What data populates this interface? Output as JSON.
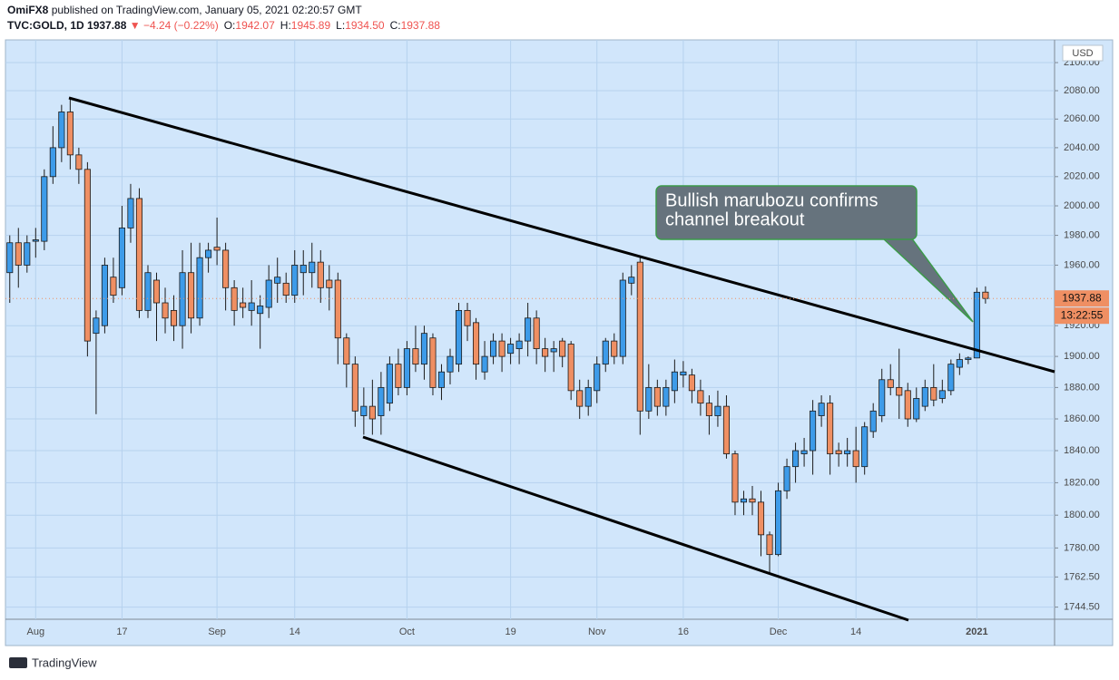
{
  "header": {
    "author": "OmiFX8",
    "published": "published on TradingView.com, January 05, 2021 02:20:57 GMT",
    "symbol": "TVC:GOLD, 1D",
    "last": "1937.88",
    "arrow": "▼",
    "change": "−4.24 (−0.22%)",
    "ohlc": [
      {
        "key": "O:",
        "value": "1942.07"
      },
      {
        "key": "H:",
        "value": "1945.89"
      },
      {
        "key": "L:",
        "value": "1934.50"
      },
      {
        "key": "C:",
        "value": "1937.88"
      }
    ]
  },
  "footer": {
    "brand": "TradingView"
  },
  "chart_data": {
    "type": "candlestick",
    "currency": "USD",
    "log_scale": true,
    "grid": true,
    "up_color": "#3d9be9",
    "down_color": "#ef8f63",
    "annotation": [
      "Bullish marubozu confirms",
      "channel breakout"
    ],
    "last_price": 1937.88,
    "countdown": "13:22:55",
    "ylim": [
      1737.3,
      2116.3
    ],
    "yticks": [
      {
        "value": 2100,
        "label": "2100.00"
      },
      {
        "value": 2080,
        "label": "2080.00"
      },
      {
        "value": 2060,
        "label": "2060.00"
      },
      {
        "value": 2040,
        "label": "2040.00"
      },
      {
        "value": 2020,
        "label": "2020.00"
      },
      {
        "value": 2000,
        "label": "2000.00"
      },
      {
        "value": 1980,
        "label": "1980.00"
      },
      {
        "value": 1960,
        "label": "1960.00"
      },
      {
        "value": 1920,
        "label": "1920.00"
      },
      {
        "value": 1900,
        "label": "1900.00"
      },
      {
        "value": 1880,
        "label": "1880.00"
      },
      {
        "value": 1860,
        "label": "1860.00"
      },
      {
        "value": 1840,
        "label": "1840.00"
      },
      {
        "value": 1820,
        "label": "1820.00"
      },
      {
        "value": 1800,
        "label": "1800.00"
      },
      {
        "value": 1780,
        "label": "1780.00"
      },
      {
        "value": 1762.5,
        "label": "1762.50"
      },
      {
        "value": 1744.5,
        "label": "1744.50"
      }
    ],
    "categories": [
      null,
      null,
      null,
      "Aug",
      null,
      null,
      null,
      null,
      null,
      null,
      null,
      null,
      null,
      "17",
      null,
      null,
      null,
      null,
      null,
      null,
      null,
      null,
      null,
      null,
      "Sep",
      null,
      null,
      null,
      null,
      null,
      null,
      null,
      null,
      "14",
      null,
      null,
      null,
      null,
      null,
      null,
      null,
      null,
      null,
      null,
      null,
      null,
      "Oct",
      null,
      null,
      null,
      null,
      null,
      null,
      null,
      null,
      null,
      null,
      null,
      "19",
      null,
      null,
      null,
      null,
      null,
      null,
      null,
      null,
      null,
      "Nov",
      null,
      null,
      null,
      null,
      null,
      null,
      null,
      null,
      null,
      "16",
      null,
      null,
      null,
      null,
      null,
      null,
      null,
      null,
      null,
      null,
      "Dec",
      null,
      null,
      null,
      null,
      null,
      null,
      null,
      null,
      "14",
      null,
      null,
      null,
      null,
      null,
      null,
      null,
      null,
      null,
      null,
      null,
      null,
      null,
      "2021",
      null
    ],
    "series": {
      "name": "TVC:GOLD",
      "open": [
        1955,
        1975,
        1960,
        1976,
        1976,
        2020,
        2040,
        2065,
        2035,
        2025,
        1915,
        1920,
        1952,
        1945,
        1985,
        2005,
        1930,
        1950,
        1935,
        1930,
        1920,
        1955,
        1925,
        1965,
        1972,
        1970,
        1945,
        1935,
        1930,
        1928,
        1932,
        1948,
        1948,
        1940,
        1955,
        1955,
        1962,
        1950,
        1950,
        1912,
        1895,
        1862,
        1868,
        1862,
        1870,
        1895,
        1880,
        1905,
        1895,
        1912,
        1880,
        1890,
        1895,
        1930,
        1922,
        1890,
        1900,
        1910,
        1902,
        1905,
        1910,
        1925,
        1905,
        1903,
        1910,
        1908,
        1878,
        1868,
        1878,
        1895,
        1910,
        1900,
        1948,
        1962,
        1865,
        1880,
        1868,
        1878,
        1888,
        1888,
        1878,
        1870,
        1862,
        1868,
        1838,
        1808,
        1810,
        1808,
        1788,
        1776,
        1815,
        1830,
        1838,
        1840,
        1862,
        1870,
        1840,
        1838,
        1840,
        1830,
        1852,
        1862,
        1885,
        1880,
        1878,
        1860,
        1868,
        1880,
        1873,
        1878,
        1893,
        1898,
        1899,
        1942.07
      ],
      "high": [
        1980,
        1985,
        1980,
        1985,
        2025,
        2055,
        2070,
        2075,
        2040,
        2030,
        1930,
        1965,
        1965,
        2000,
        2015,
        2012,
        1960,
        1955,
        1945,
        1940,
        1970,
        1975,
        1975,
        1975,
        1992,
        1975,
        1950,
        1945,
        1950,
        1940,
        1960,
        1965,
        1955,
        1970,
        1970,
        1975,
        1970,
        1960,
        1955,
        1915,
        1900,
        1880,
        1885,
        1890,
        1900,
        1905,
        1910,
        1920,
        1920,
        1915,
        1895,
        1905,
        1935,
        1935,
        1925,
        1910,
        1915,
        1915,
        1912,
        1915,
        1935,
        1930,
        1912,
        1910,
        1912,
        1910,
        1885,
        1885,
        1900,
        1912,
        1915,
        1955,
        1960,
        1965,
        1895,
        1885,
        1885,
        1898,
        1897,
        1892,
        1885,
        1875,
        1878,
        1875,
        1840,
        1815,
        1818,
        1815,
        1790,
        1820,
        1835,
        1845,
        1848,
        1872,
        1875,
        1875,
        1845,
        1848,
        1855,
        1858,
        1870,
        1892,
        1895,
        1905,
        1883,
        1880,
        1885,
        1895,
        1885,
        1898,
        1902,
        1900,
        1945,
        1945.89
      ],
      "low": [
        1935,
        1945,
        1955,
        1965,
        1970,
        2015,
        2030,
        2025,
        2015,
        1900,
        1863,
        1915,
        1935,
        1940,
        1975,
        1925,
        1925,
        1910,
        1915,
        1910,
        1905,
        1915,
        1920,
        1955,
        1960,
        1930,
        1920,
        1925,
        1920,
        1905,
        1925,
        1935,
        1935,
        1935,
        1940,
        1945,
        1935,
        1930,
        1895,
        1880,
        1855,
        1850,
        1850,
        1850,
        1865,
        1875,
        1875,
        1890,
        1885,
        1875,
        1872,
        1882,
        1890,
        1910,
        1885,
        1885,
        1895,
        1890,
        1895,
        1895,
        1900,
        1895,
        1890,
        1890,
        1893,
        1872,
        1860,
        1862,
        1870,
        1890,
        1895,
        1895,
        1940,
        1850,
        1860,
        1862,
        1862,
        1870,
        1880,
        1870,
        1862,
        1850,
        1855,
        1835,
        1800,
        1800,
        1800,
        1775,
        1765,
        1775,
        1810,
        1820,
        1830,
        1825,
        1855,
        1825,
        1830,
        1830,
        1820,
        1825,
        1848,
        1858,
        1875,
        1860,
        1855,
        1858,
        1865,
        1868,
        1870,
        1875,
        1888,
        1895,
        1899,
        1934.5
      ],
      "close": [
        1975,
        1960,
        1975,
        1977,
        2020,
        2040,
        2065,
        2035,
        2025,
        1910,
        1925,
        1960,
        1940,
        1985,
        2005,
        1930,
        1955,
        1935,
        1925,
        1920,
        1955,
        1925,
        1965,
        1970,
        1970,
        1945,
        1930,
        1932,
        1935,
        1933,
        1950,
        1952,
        1940,
        1960,
        1960,
        1962,
        1945,
        1945,
        1912,
        1895,
        1865,
        1868,
        1860,
        1880,
        1895,
        1880,
        1905,
        1895,
        1915,
        1880,
        1890,
        1900,
        1930,
        1920,
        1895,
        1900,
        1910,
        1900,
        1908,
        1910,
        1925,
        1905,
        1900,
        1905,
        1900,
        1878,
        1868,
        1880,
        1895,
        1910,
        1900,
        1950,
        1952,
        1865,
        1880,
        1868,
        1880,
        1890,
        1890,
        1878,
        1870,
        1862,
        1868,
        1838,
        1808,
        1810,
        1808,
        1788,
        1776,
        1815,
        1830,
        1840,
        1840,
        1865,
        1870,
        1838,
        1838,
        1840,
        1830,
        1855,
        1865,
        1885,
        1880,
        1875,
        1860,
        1873,
        1880,
        1872,
        1878,
        1895,
        1898,
        1899,
        1942,
        1937.88
      ]
    }
  }
}
